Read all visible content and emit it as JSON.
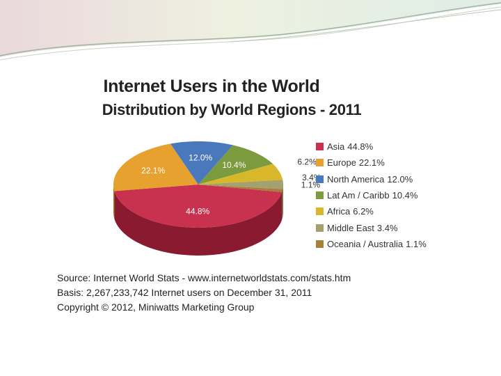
{
  "chart_data": {
    "type": "pie",
    "title": "Internet Users in the World",
    "subtitle": "Distribution by World Regions - 2011",
    "categories": [
      "Asia",
      "Europe",
      "North America",
      "Lat Am / Caribb",
      "Africa",
      "Middle East",
      "Oceania / Australia"
    ],
    "values": [
      44.8,
      22.1,
      12.0,
      10.4,
      6.2,
      3.4,
      1.1
    ],
    "value_labels": [
      "44.8%",
      "22.1%",
      "12.0%",
      "10.4%",
      "6.2%",
      "3.4%",
      "1.1%"
    ],
    "legend_values": [
      "44.8%",
      "22.1%",
      "12.0%",
      "10.4%",
      "6.2%",
      "3.4%",
      "1.1%"
    ],
    "colors": [
      "#c8324e",
      "#e7a12e",
      "#4a78bd",
      "#7c9a3e",
      "#d8b82a",
      "#a4a070",
      "#a8803e"
    ],
    "side_colors": [
      "#8a1a30",
      "#a86b12",
      "#2e4f86",
      "#546c26",
      "#9c8416",
      "#6f6b44",
      "#735424"
    ],
    "legend_placement": "right",
    "style": "3d"
  },
  "source": {
    "line": "Source: Internet World Stats -  www.internetworldstats.com/stats.htm",
    "basis": "Basis: 2,267,233,742 Internet users on December 31, 2011",
    "copyright": "Copyright © 2012, Miniwatts Marketing Group"
  }
}
